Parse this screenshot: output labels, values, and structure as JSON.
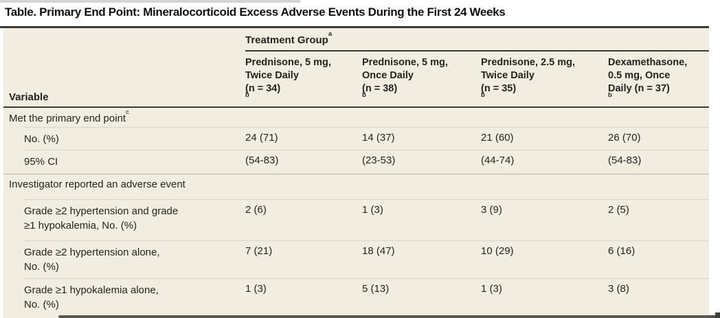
{
  "title": "Table. Primary End Point: Mineralocorticoid Excess Adverse Events During the First 24 Weeks",
  "header": {
    "variable_label": "Variable",
    "group_label": {
      "text": "Treatment Group",
      "sup": "a"
    },
    "columns": [
      {
        "lines": [
          "Prednisone, 5 mg,",
          "Twice Daily",
          "(n = 34)"
        ],
        "sup": "b"
      },
      {
        "lines": [
          "Prednisone, 5 mg,",
          "Once Daily",
          "(n = 38)"
        ],
        "sup": "b"
      },
      {
        "lines": [
          "Prednisone, 2.5 mg,",
          "Twice Daily",
          "(n = 35)"
        ],
        "sup": "b"
      },
      {
        "lines": [
          "Dexamethasone,",
          "0.5 mg, Once",
          "Daily (n = 37)"
        ],
        "sup": "b"
      }
    ]
  },
  "sections": [
    {
      "heading": {
        "text": "Met the primary end point",
        "sup": "c"
      },
      "rows": [
        {
          "label": "No. (%)",
          "values": [
            "24 (71)",
            "14 (37)",
            "21 (60)",
            "26 (70)"
          ]
        },
        {
          "label": "95% CI",
          "values": [
            "(54-83)",
            "(23-53)",
            "(44-74)",
            "(54-83)"
          ]
        }
      ]
    },
    {
      "heading": {
        "text": "Investigator reported an adverse event"
      },
      "rows": [
        {
          "label": "Grade ≥2 hypertension and grade\n≥1 hypokalemia, No. (%)",
          "values": [
            "2 (6)",
            "1 (3)",
            "3 (9)",
            "2 (5)"
          ]
        },
        {
          "label": "Grade ≥2 hypertension alone,\nNo. (%)",
          "values": [
            "7 (21)",
            "18 (47)",
            "10 (29)",
            "6 (16)"
          ]
        },
        {
          "label": "Grade ≥1 hypokalemia alone,\nNo. (%)",
          "values": [
            "1 (3)",
            "5 (13)",
            "1 (3)",
            "3 (8)"
          ]
        }
      ]
    }
  ],
  "colors": {
    "table_background": "#f1eee1",
    "heavy_rule": "#3a3a36",
    "row_separator": "#d9d5c6",
    "section_separator": "#b7b3a5",
    "text": "#23231f",
    "page_background": "#ffffff"
  }
}
